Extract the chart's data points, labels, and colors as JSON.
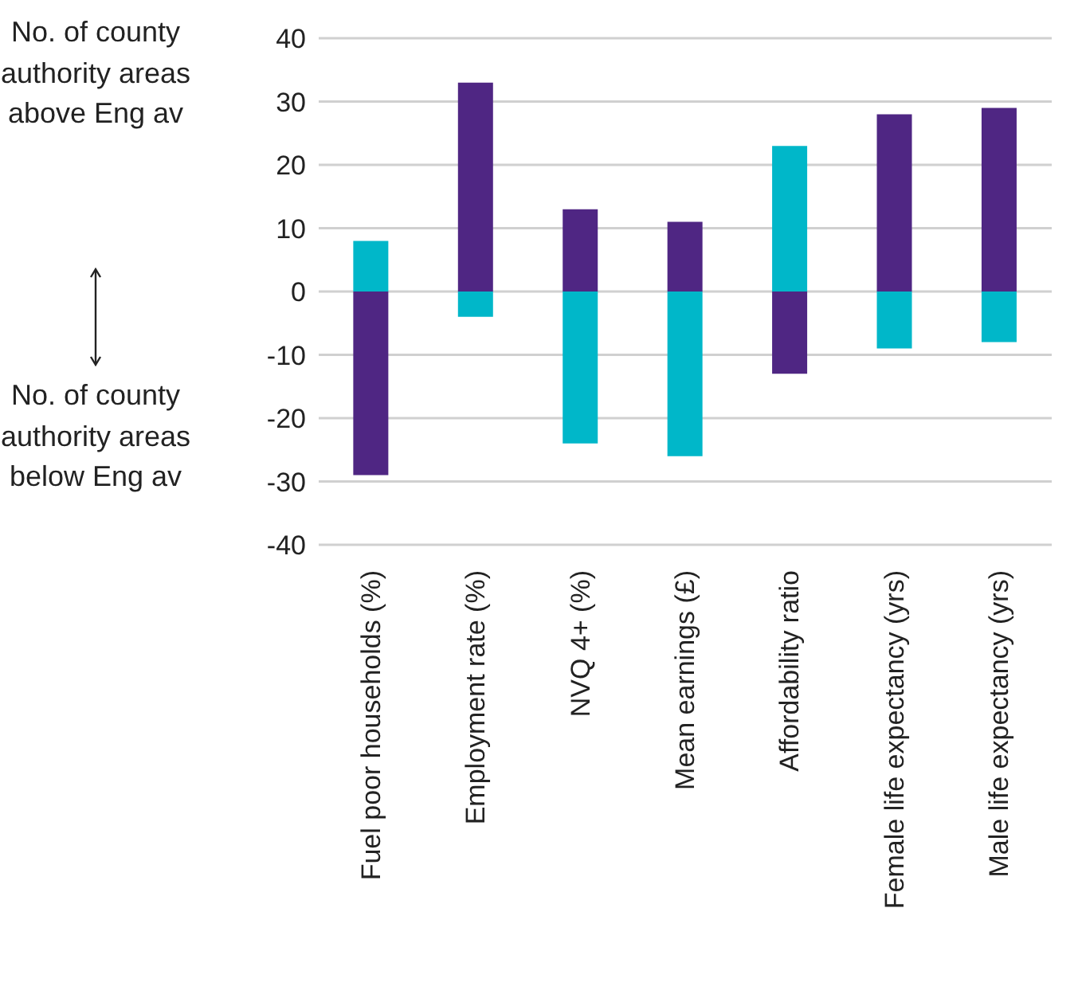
{
  "chart_data": {
    "type": "bar",
    "stacked": true,
    "categories": [
      "Fuel poor households (%)",
      "Employment rate (%)",
      "NVQ 4+ (%)",
      "Mean earnings (£)",
      "Affordability ratio",
      "Female life expectancy (yrs)",
      "Male life expectancy (yrs)"
    ],
    "series": [
      {
        "color": "#4f2683",
        "values": [
          -29,
          33,
          13,
          11,
          -13,
          28,
          29
        ]
      },
      {
        "color": "#00b7c9",
        "values": [
          8,
          -4,
          -24,
          -26,
          23,
          -9,
          -8
        ]
      }
    ],
    "ylim": [
      -40,
      40
    ],
    "yticks": [
      -40,
      -30,
      -20,
      -10,
      0,
      10,
      20,
      30,
      40
    ],
    "grid": "y",
    "legend": false,
    "annotations": [
      "No. of county authority areas above Eng av",
      "No. of county authority areas below Eng av"
    ]
  }
}
